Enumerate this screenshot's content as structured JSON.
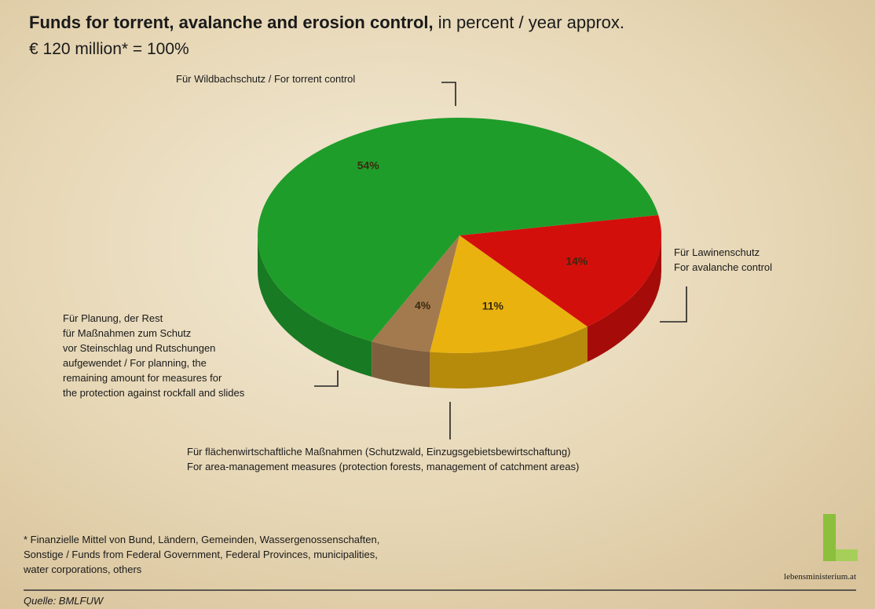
{
  "chart_data": {
    "type": "pie",
    "title": "Funds for torrent, avalanche and erosion control,",
    "title_note": "in percent / year approx.",
    "subtitle": "€ 120 million* = 100%",
    "categories": [
      "Für Lawinenschutz\nFor avalanche control",
      "Für flächenwirtschaftliche Maßnahmen (Schutzwald, Einzugsgebietsbewirtschaftung)\nFor area-management measures (protection forests, management of catchment areas)",
      "Für Planung, der Rest\nfür Maßnahmen zum Schutz\nvor Steinschlag und Rutschungen\naufgewendet / For planning, the\nremaining amount for measures for\nthe protection against rockfall and slides",
      "Für Wildbachschutz / For torrent control"
    ],
    "values": [
      14,
      11,
      4,
      54
    ],
    "value_labels": [
      "14%",
      "11%",
      "4%",
      "54%"
    ],
    "colors": [
      "#d30f0c",
      "#e9b20f",
      "#a37a4e",
      "#1f9d2b"
    ],
    "footnote": "* Finanzielle Mittel von Bund, Ländern, Gemeinden, Wassergenossenschaften,\nSonstige / Funds from Federal Government, Federal Provinces, municipalities,\nwater corporations, others",
    "source": "Quelle: BMLFUW",
    "logo": "lebensministerium.at"
  }
}
